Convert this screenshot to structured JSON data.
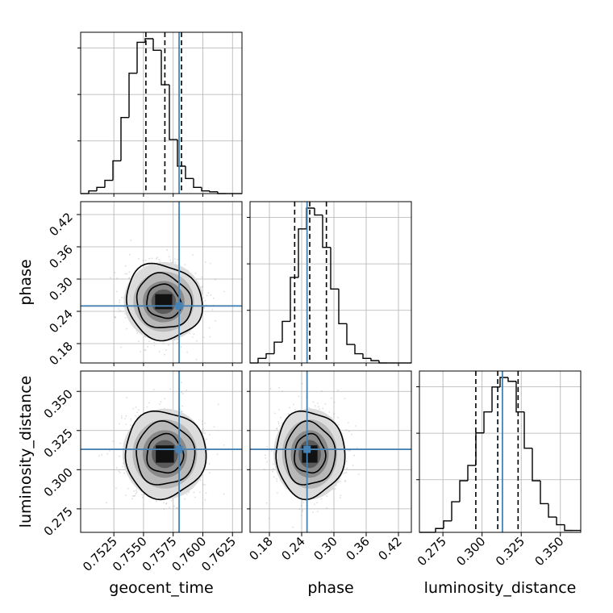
{
  "colors": {
    "truth": "#4682b4",
    "hist": "#000000",
    "grid": "#b0b0b0",
    "points": "#9a9a9a"
  },
  "chart_data": {
    "type": "corner",
    "parameters": [
      "geocent_time",
      "phase",
      "luminosity_distance"
    ],
    "truths": {
      "geocent_time": 0.758,
      "phase": 0.25,
      "luminosity_distance": 0.313
    },
    "axes": {
      "geocent_time": {
        "range": [
          0.7497,
          0.7633
        ],
        "ticks": [
          "0.7525",
          "0.7550",
          "0.7575",
          "0.7600",
          "0.7625"
        ]
      },
      "phase": {
        "range": [
          0.144,
          0.444
        ],
        "ticks": [
          "0.18",
          "0.24",
          "0.30",
          "0.36",
          "0.42"
        ]
      },
      "luminosity_distance": {
        "range": [
          0.26,
          0.363
        ],
        "ticks": [
          "0.275",
          "0.300",
          "0.325",
          "0.350"
        ]
      }
    },
    "grid": true,
    "histograms": [
      {
        "parameter": "geocent_time",
        "quantiles": [
          0.7552,
          0.7568,
          0.7582
        ],
        "bins": [
          0.7497,
          0.7633
        ],
        "values": [
          0,
          3,
          7,
          15,
          37,
          86,
          136,
          171,
          175,
          162,
          123,
          61,
          31,
          17,
          7,
          3,
          2,
          0,
          0,
          0
        ]
      },
      {
        "parameter": "phase",
        "quantiles": [
          0.227,
          0.255,
          0.286
        ],
        "bins": [
          0.144,
          0.444
        ],
        "values": [
          0,
          2,
          4,
          9,
          18,
          37,
          58,
          67,
          64,
          50,
          32,
          17,
          8,
          4,
          2,
          1,
          0,
          0,
          0,
          0
        ]
      },
      {
        "parameter": "luminosity_distance",
        "quantiles": [
          0.296,
          0.31,
          0.323
        ],
        "bins": [
          0.26,
          0.363
        ],
        "values": [
          0,
          0,
          2,
          6,
          16,
          27,
          35,
          52,
          63,
          76,
          81,
          79,
          63,
          44,
          27,
          15,
          8,
          4,
          1,
          1
        ]
      }
    ],
    "joint": [
      {
        "x": "geocent_time",
        "y": "phase",
        "mean": [
          0.7567,
          0.258
        ],
        "sd": [
          0.0016,
          0.035
        ],
        "rho": -0.1
      },
      {
        "x": "geocent_time",
        "y": "luminosity_distance",
        "mean": [
          0.7568,
          0.31
        ],
        "sd": [
          0.0017,
          0.0138
        ],
        "rho": 0.0
      },
      {
        "x": "phase",
        "y": "luminosity_distance",
        "mean": [
          0.255,
          0.31
        ],
        "sd": [
          0.032,
          0.0138
        ],
        "rho": 0.0
      }
    ]
  }
}
